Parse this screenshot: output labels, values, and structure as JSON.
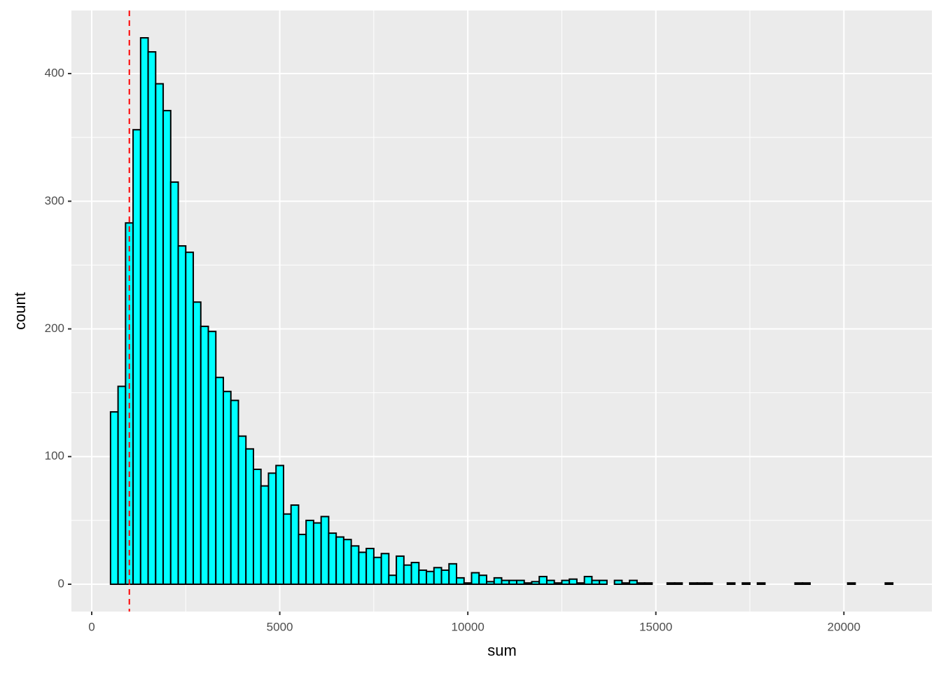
{
  "chart_data": {
    "type": "histogram",
    "x_label": "sum",
    "y_label": "count",
    "bins": [
      500,
      700,
      900,
      1100,
      1300,
      1500,
      1700,
      1900,
      2100,
      2300,
      2500,
      2700,
      2900,
      3100,
      3300,
      3500,
      3700,
      3900,
      4100,
      4300,
      4500,
      4700,
      4900,
      5100,
      5300,
      5500,
      5700,
      5900,
      6100,
      6300,
      6500,
      6700,
      6900,
      7100,
      7300,
      7500,
      7700,
      7900,
      8100,
      8300,
      8500,
      8700,
      8900,
      9100,
      9300,
      9500,
      9700,
      9900,
      10100,
      10300,
      10500,
      10700,
      10900,
      11100,
      11300,
      11500,
      11700,
      11900,
      12100,
      12300,
      12500,
      12700,
      12900,
      13100,
      13300,
      13500,
      13700,
      13900,
      14100,
      14300,
      14500,
      14700,
      14900,
      15100,
      15300,
      15500,
      15700,
      15900,
      16100,
      16300,
      16500,
      16700,
      16900,
      17100,
      17300,
      17500,
      17700,
      17900,
      18100,
      18300,
      18500,
      18700,
      18900,
      19100,
      19300,
      19500,
      19700,
      19900,
      20100,
      20300,
      20500,
      20700,
      20900,
      21100,
      21300
    ],
    "values": [
      135,
      155,
      283,
      356,
      428,
      417,
      392,
      371,
      315,
      265,
      260,
      221,
      202,
      198,
      162,
      151,
      144,
      116,
      106,
      90,
      77,
      87,
      93,
      55,
      62,
      39,
      50,
      48,
      53,
      40,
      37,
      35,
      30,
      25,
      28,
      21,
      24,
      7,
      22,
      15,
      17,
      11,
      10,
      13,
      11,
      16,
      5,
      1,
      9,
      7,
      2,
      5,
      3,
      3,
      3,
      1,
      2,
      6,
      3,
      1,
      3,
      4,
      1,
      6,
      3,
      3,
      0,
      3,
      1,
      3,
      1,
      1,
      0,
      0,
      1,
      1,
      0,
      1,
      1,
      1,
      0,
      0,
      1,
      0,
      1,
      0,
      1,
      0,
      0,
      0,
      0,
      1,
      1,
      0,
      0,
      0,
      0,
      0,
      1,
      0,
      0,
      0,
      0,
      1
    ],
    "color": "#00ffff",
    "edge_color": "#000000",
    "vline": 1000,
    "vline_color": "#ff0000",
    "xlim": [
      -540,
      22340
    ],
    "xticks": [
      0,
      5000,
      10000,
      15000,
      20000
    ],
    "ylim": [
      -21.4,
      449.4
    ],
    "yticks": [
      0,
      100,
      200,
      300,
      400
    ],
    "grid": true
  }
}
